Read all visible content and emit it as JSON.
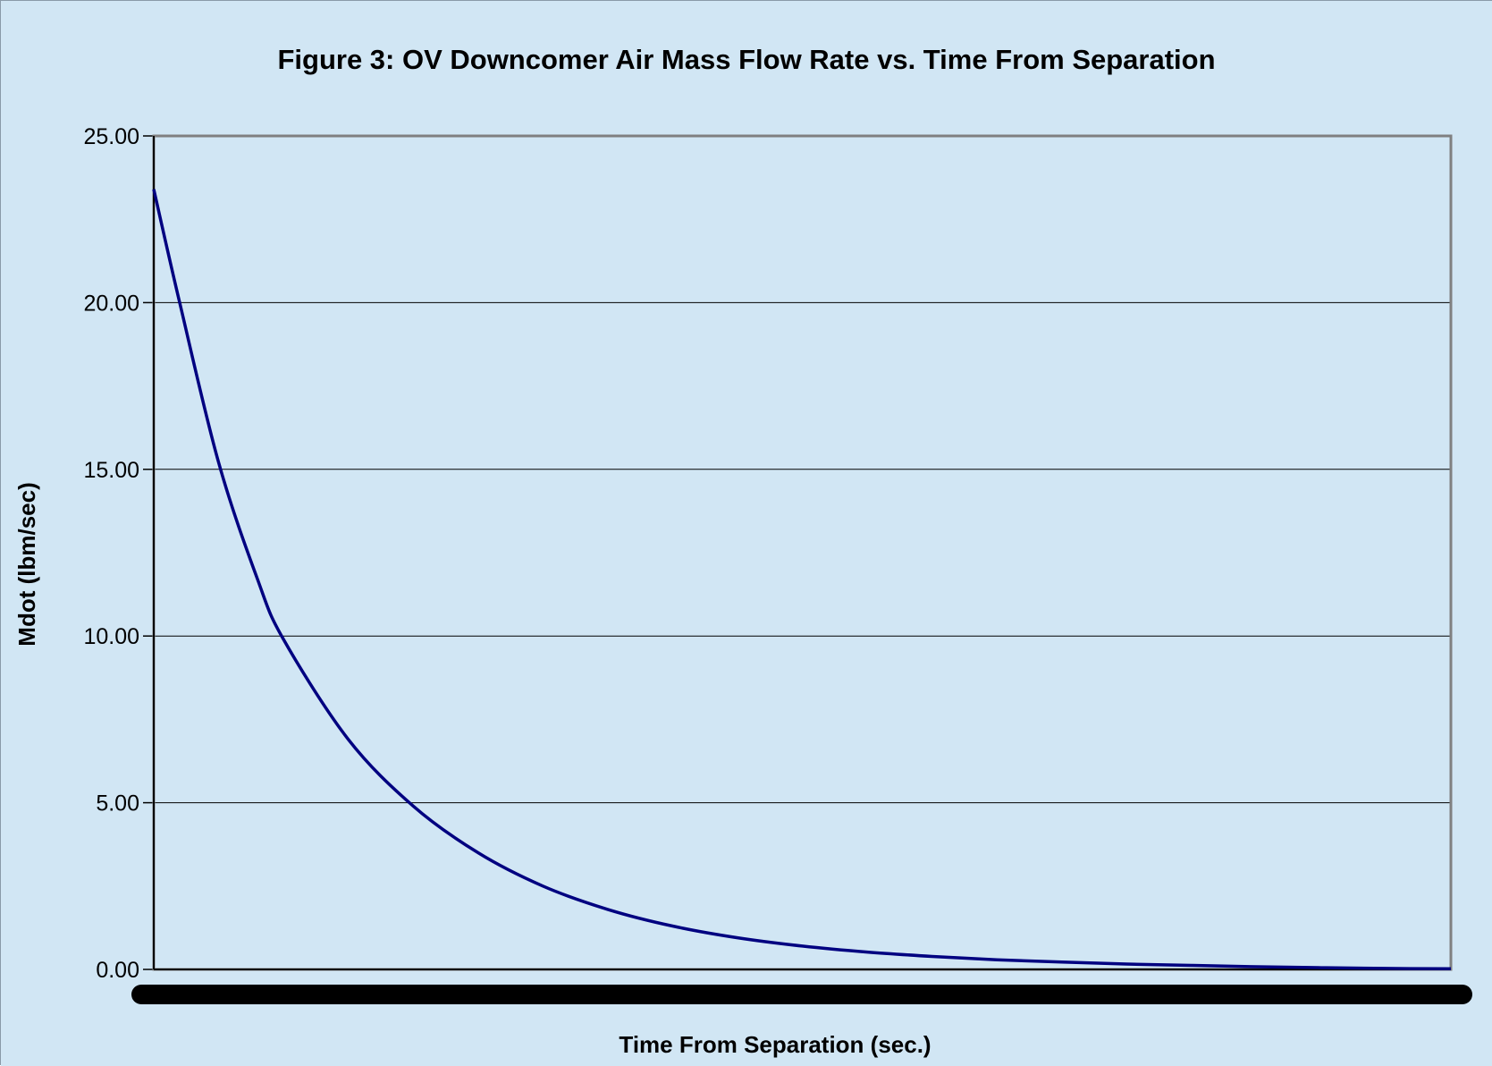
{
  "chart_data": {
    "type": "line",
    "title": "Figure 3: OV Downcomer Air Mass Flow Rate vs. Time From Separation",
    "xlabel": "Time From Separation (sec.)",
    "ylabel": "Mdot (lbm/sec)",
    "ylim": [
      0,
      25
    ],
    "yticks": [
      "0.00",
      "5.00",
      "10.00",
      "15.00",
      "20.00",
      "25.00"
    ],
    "grid": true,
    "legend": "none",
    "x_tick_labels_legible": false,
    "series": [
      {
        "color": "#000080",
        "x": [
          0,
          0.02,
          0.05,
          0.08,
          0.1,
          0.15,
          0.2,
          0.25,
          0.3,
          0.35,
          0.4,
          0.45,
          0.5,
          0.55,
          0.6,
          0.65,
          0.7,
          0.75,
          0.8,
          0.85,
          0.9,
          0.95,
          1.0
        ],
        "values": [
          23.4,
          20.0,
          15.2,
          11.7,
          9.9,
          6.9,
          4.9,
          3.5,
          2.5,
          1.8,
          1.3,
          0.95,
          0.7,
          0.52,
          0.39,
          0.29,
          0.22,
          0.16,
          0.12,
          0.08,
          0.05,
          0.03,
          0.02
        ]
      }
    ],
    "colors": {
      "background": "#d1e6f4",
      "plot_background": "#d1e6f4",
      "gridline": "#000000",
      "plot_border": "#808080"
    }
  }
}
